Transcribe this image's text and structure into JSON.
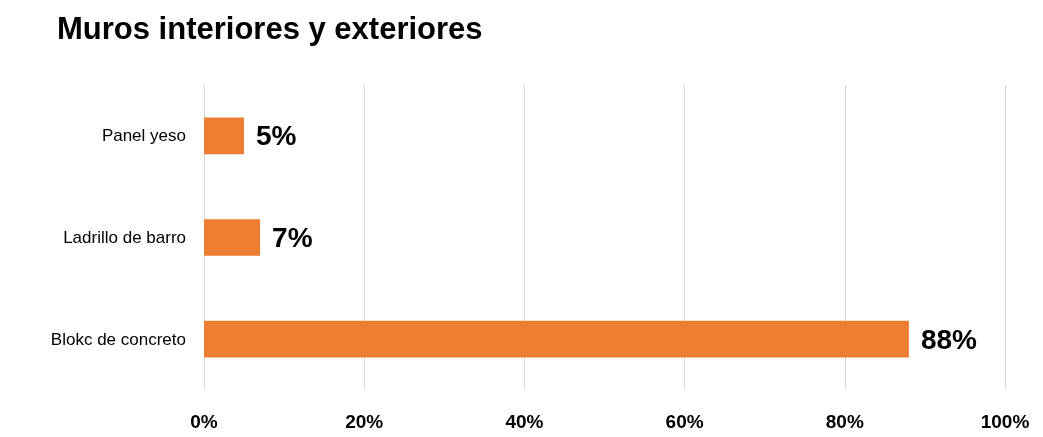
{
  "chart_data": {
    "type": "bar",
    "orientation": "horizontal",
    "title": "Muros interiores y exteriores",
    "categories": [
      "Panel yeso",
      "Ladrillo de barro",
      "Blokc de concreto"
    ],
    "values": [
      5,
      7,
      88
    ],
    "color": "#ed7d31",
    "value_labels": [
      "5%",
      "7%",
      "88%"
    ],
    "xlim": [
      0,
      100
    ],
    "xticks": [
      {
        "value": 0,
        "label": "0%"
      },
      {
        "value": 20,
        "label": "20%"
      },
      {
        "value": 40,
        "label": "40%"
      },
      {
        "value": 60,
        "label": "60%"
      },
      {
        "value": 80,
        "label": "80%"
      },
      {
        "value": 100,
        "label": "100%"
      }
    ],
    "grid": "x"
  }
}
